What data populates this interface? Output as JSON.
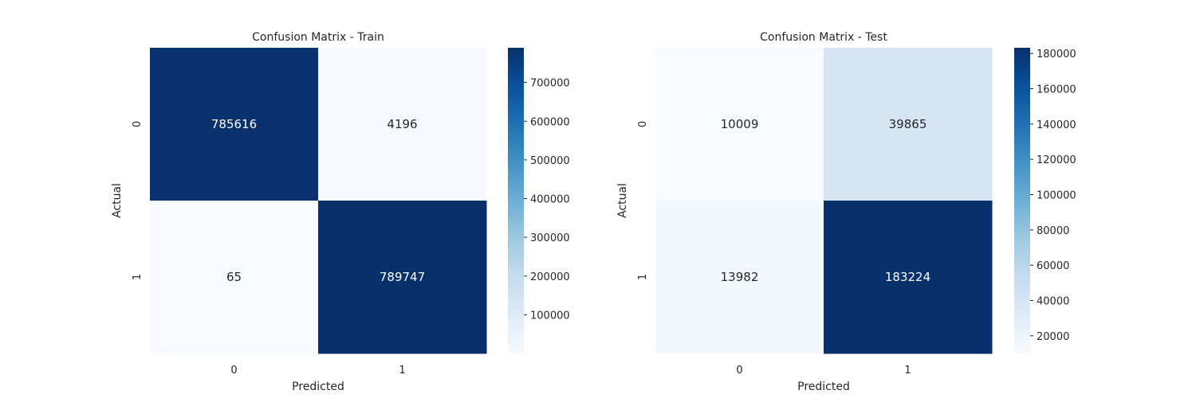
{
  "chart_data": [
    {
      "type": "heatmap",
      "title": "Confusion Matrix - Train",
      "xlabel": "Predicted",
      "ylabel": "Actual",
      "x_categories": [
        "0",
        "1"
      ],
      "y_categories": [
        "0",
        "1"
      ],
      "values": [
        [
          785616,
          4196
        ],
        [
          65,
          789747
        ]
      ],
      "colormap": "Blues",
      "colorbar": {
        "min": 65,
        "max": 789747,
        "ticks": [
          100000,
          200000,
          300000,
          400000,
          500000,
          600000,
          700000
        ]
      }
    },
    {
      "type": "heatmap",
      "title": "Confusion Matrix - Test",
      "xlabel": "Predicted",
      "ylabel": "Actual",
      "x_categories": [
        "0",
        "1"
      ],
      "y_categories": [
        "0",
        "1"
      ],
      "values": [
        [
          10009,
          39865
        ],
        [
          13982,
          183224
        ]
      ],
      "colormap": "Blues",
      "colorbar": {
        "min": 10009,
        "max": 183224,
        "ticks": [
          20000,
          40000,
          60000,
          80000,
          100000,
          120000,
          140000,
          160000,
          180000
        ]
      }
    }
  ]
}
